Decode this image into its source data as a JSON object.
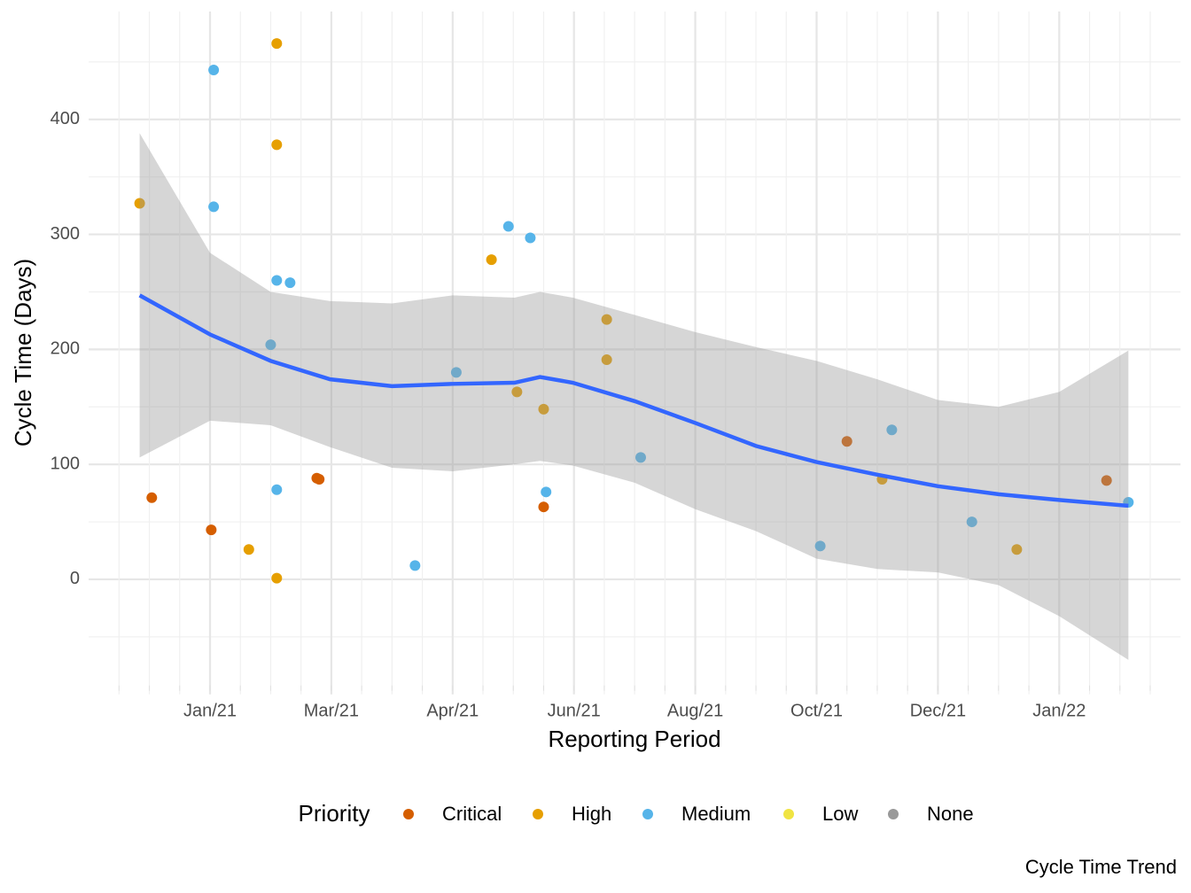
{
  "chart_data": {
    "type": "scatter",
    "caption": "Cycle Time Trend",
    "x_label": "Reporting Period",
    "y_label": "Cycle Time (Days)",
    "legend_title": "Priority",
    "legend_position": "bottom",
    "grid": true,
    "xlim": [
      0,
      9
    ],
    "ylim": [
      -100,
      500
    ],
    "xticks": [
      {
        "value": 1,
        "label": "Jan/21"
      },
      {
        "value": 2,
        "label": "Mar/21"
      },
      {
        "value": 3,
        "label": "Apr/21"
      },
      {
        "value": 4,
        "label": "Jun/21"
      },
      {
        "value": 5,
        "label": "Aug/21"
      },
      {
        "value": 6,
        "label": "Oct/21"
      },
      {
        "value": 7,
        "label": "Dec/21"
      },
      {
        "value": 8,
        "label": "Jan/22"
      }
    ],
    "yticks": [
      0,
      100,
      200,
      300,
      400
    ],
    "series": [
      {
        "name": "Critical",
        "color": "#D55E00",
        "x": [
          0.52,
          1.01,
          1.88,
          1.9,
          3.75,
          6.25,
          8.39
        ],
        "values": [
          71,
          43,
          88,
          87,
          63,
          120,
          86
        ]
      },
      {
        "name": "High",
        "color": "#E69F00",
        "x": [
          0.42,
          1.32,
          1.55,
          1.55,
          1.55,
          3.32,
          3.53,
          3.75,
          4.27,
          4.27,
          6.54,
          7.65
        ],
        "values": [
          327,
          26,
          466,
          378,
          1,
          278,
          163,
          148,
          226,
          191,
          87,
          26
        ]
      },
      {
        "name": "Medium",
        "color": "#56B4E9",
        "x": [
          1.03,
          1.03,
          1.55,
          1.66,
          1.5,
          1.55,
          2.69,
          3.03,
          3.46,
          3.64,
          3.77,
          4.55,
          6.03,
          6.62,
          7.28,
          8.57
        ],
        "values": [
          443,
          324,
          260,
          258,
          204,
          78,
          12,
          180,
          307,
          297,
          76,
          106,
          29,
          130,
          50,
          67
        ]
      },
      {
        "name": "Low",
        "color": "#F0E442",
        "x": [],
        "values": []
      },
      {
        "name": "None",
        "color": "#999999",
        "x": [],
        "values": []
      }
    ],
    "trend": {
      "color": "#3366FF",
      "band_color": "#999999",
      "x": [
        0.42,
        1,
        1.5,
        1.99,
        2.5,
        3,
        3.51,
        3.72,
        3.99,
        4.5,
        5,
        5.5,
        6,
        6.5,
        7,
        7.5,
        8,
        8.57
      ],
      "values": [
        247,
        213,
        190,
        174,
        168,
        170,
        171,
        176,
        171,
        155,
        136,
        116,
        102,
        91,
        81,
        74,
        69,
        64
      ],
      "upper": [
        388,
        284,
        250,
        242,
        240,
        247,
        245,
        250,
        245,
        230,
        215,
        202,
        190,
        174,
        156,
        150,
        163,
        199
      ],
      "lower": [
        106,
        138,
        134,
        115,
        97,
        94,
        100,
        103,
        99,
        84,
        61,
        42,
        18,
        9,
        6,
        -5,
        -32,
        -70
      ]
    }
  }
}
